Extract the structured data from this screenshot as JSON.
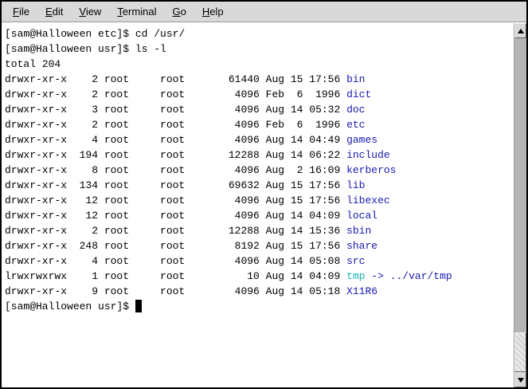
{
  "colors": {
    "foreground": "#000000",
    "background": "#ffffff",
    "directory_blue": "#1818b2",
    "symlink_cyan": "#18b2b2",
    "chrome_gray": "#d9d9d9"
  },
  "menu_bar": {
    "items": [
      {
        "label": "File"
      },
      {
        "label": "Edit"
      },
      {
        "label": "View"
      },
      {
        "label": "Terminal"
      },
      {
        "label": "Go"
      },
      {
        "label": "Help"
      }
    ]
  },
  "terminal": {
    "prompt_etc": "[sam@Halloween etc]$",
    "prompt_usr": "[sam@Halloween usr]$",
    "commands": [
      "cd /usr/",
      "ls -l"
    ],
    "total_line": "total 204",
    "lines": [
      [
        [
          "[sam@Halloween etc]$ cd /usr/",
          "t"
        ]
      ],
      [
        [
          "[sam@Halloween usr]$ ls -l",
          "t"
        ]
      ],
      [
        [
          "total 204",
          "t"
        ]
      ],
      [
        [
          "drwxr-xr-x    2 root     root       61440 Aug 15 17:56 ",
          "t"
        ],
        [
          "bin",
          "d"
        ]
      ],
      [
        [
          "drwxr-xr-x    2 root     root        4096 Feb  6  1996 ",
          "t"
        ],
        [
          "dict",
          "d"
        ]
      ],
      [
        [
          "drwxr-xr-x    3 root     root        4096 Aug 14 05:32 ",
          "t"
        ],
        [
          "doc",
          "d"
        ]
      ],
      [
        [
          "drwxr-xr-x    2 root     root        4096 Feb  6  1996 ",
          "t"
        ],
        [
          "etc",
          "d"
        ]
      ],
      [
        [
          "drwxr-xr-x    4 root     root        4096 Aug 14 04:49 ",
          "t"
        ],
        [
          "games",
          "d"
        ]
      ],
      [
        [
          "drwxr-xr-x  194 root     root       12288 Aug 14 06:22 ",
          "t"
        ],
        [
          "include",
          "d"
        ]
      ],
      [
        [
          "drwxr-xr-x    8 root     root        4096 Aug  2 16:09 ",
          "t"
        ],
        [
          "kerberos",
          "d"
        ]
      ],
      [
        [
          "drwxr-xr-x  134 root     root       69632 Aug 15 17:56 ",
          "t"
        ],
        [
          "lib",
          "d"
        ]
      ],
      [
        [
          "drwxr-xr-x   12 root     root        4096 Aug 15 17:56 ",
          "t"
        ],
        [
          "libexec",
          "d"
        ]
      ],
      [
        [
          "drwxr-xr-x   12 root     root        4096 Aug 14 04:09 ",
          "t"
        ],
        [
          "local",
          "d"
        ]
      ],
      [
        [
          "drwxr-xr-x    2 root     root       12288 Aug 14 15:36 ",
          "t"
        ],
        [
          "sbin",
          "d"
        ]
      ],
      [
        [
          "drwxr-xr-x  248 root     root        8192 Aug 15 17:56 ",
          "t"
        ],
        [
          "share",
          "d"
        ]
      ],
      [
        [
          "drwxr-xr-x    4 root     root        4096 Aug 14 05:08 ",
          "t"
        ],
        [
          "src",
          "d"
        ]
      ],
      [
        [
          "lrwxrwxrwx    1 root     root          10 Aug 14 04:09 ",
          "t"
        ],
        [
          "tmp",
          "l"
        ],
        [
          " -> ../var/tmp",
          "d"
        ]
      ],
      [
        [
          "drwxr-xr-x    9 root     root        4096 Aug 14 05:18 ",
          "t"
        ],
        [
          "X11R6",
          "d"
        ]
      ],
      [
        [
          "[sam@Halloween usr]$ ",
          "t"
        ],
        [
          "",
          "cur"
        ]
      ]
    ],
    "cursor_style": "block"
  },
  "scrollbar": {
    "up_icon": "scroll-up-arrow",
    "down_icon": "scroll-down-arrow",
    "thumb_position": "bottom"
  }
}
